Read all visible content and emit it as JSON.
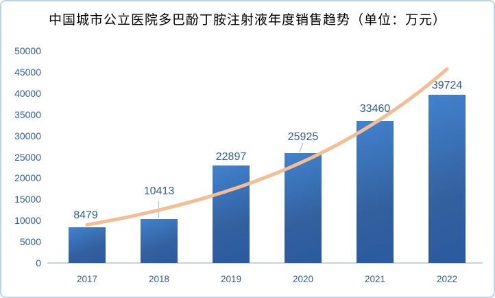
{
  "chart": {
    "title": "中国城市公立医院多巴酚丁胺注射液年度销售趋势（单位：万元）"
  },
  "chart_data": {
    "type": "bar",
    "title": "中国城市公立医院多巴酚丁胺注射液年度销售趋势（单位：万元）",
    "unit": "万元",
    "categories": [
      "2017",
      "2018",
      "2019",
      "2020",
      "2021",
      "2022"
    ],
    "values": [
      8479,
      10413,
      22897,
      25925,
      33460,
      39724
    ],
    "data_labels": [
      "8479",
      "10413",
      "22897",
      "25925",
      "33460",
      "39724"
    ],
    "yticks": [
      0,
      5000,
      10000,
      15000,
      20000,
      25000,
      30000,
      35000,
      40000,
      45000,
      50000
    ],
    "ylim": [
      0,
      50000
    ],
    "xlabel": "",
    "ylabel": "",
    "grid": false,
    "legend": "none",
    "trendline": {
      "type": "exponential",
      "values_estimated": [
        9000,
        12480,
        17260,
        23880,
        33040,
        45720
      ]
    },
    "colors": {
      "bar_top": "#4282CE",
      "bar_bottom": "#2A5AA0",
      "trend": "#F5BD93",
      "axis_text": "#2E5C99",
      "data_label_text": "#2E5C99",
      "axis_line": "#C3D2E4",
      "leader_line": "#9DC3E6",
      "frame_border": "#BFD3E8",
      "title_text": "#000000",
      "background": "#FFFFFF"
    }
  }
}
